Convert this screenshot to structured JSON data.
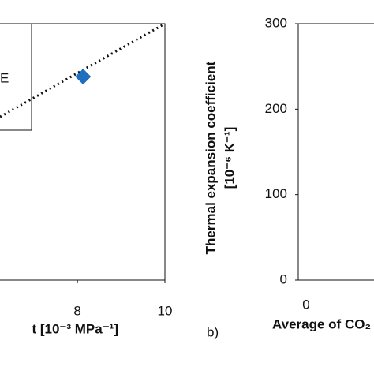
{
  "chart_data": [
    {
      "type": "scatter",
      "xlabel": "t [10⁻³ MPa⁻¹]",
      "xlim": [
        6.23,
        10
      ],
      "xticks": [
        8,
        10
      ],
      "ylim": [
        0,
        300
      ],
      "series": [
        {
          "name": "E",
          "color": "#1f6fbf",
          "x": [
            8.13
          ],
          "values": [
            238
          ]
        }
      ],
      "trendline": {
        "color": "#111111",
        "x": [
          6.23,
          10
        ],
        "values": [
          191,
          300
        ]
      }
    },
    {
      "type": "scatter",
      "panel_label": "b)",
      "ylabel": [
        "Thermal expansion coefficient",
        "[10⁻⁶ K⁻¹]"
      ],
      "xlabel": "Average of CO₂",
      "xticks": [
        0
      ],
      "ylim": [
        0,
        300
      ],
      "yticks": [
        0,
        100,
        200,
        300
      ],
      "series": []
    }
  ]
}
